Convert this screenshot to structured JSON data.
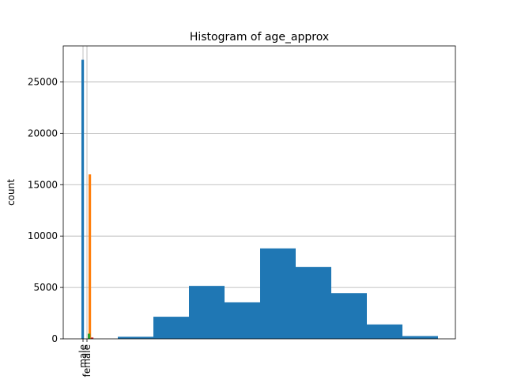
{
  "chart_data": {
    "type": "bar",
    "title": "Histogram of age_approx",
    "xlabel": "",
    "ylabel": "count",
    "ylim": [
      0,
      28500
    ],
    "yticks": [
      0,
      5000,
      10000,
      15000,
      20000,
      25000
    ],
    "grid": "y",
    "legend": "none",
    "categorical_bars": {
      "categories": [
        "male",
        "female"
      ],
      "series": [
        {
          "values": [
            27150,
            0
          ],
          "color": "#1f77b4"
        },
        {
          "values": [
            0,
            16000
          ],
          "color": "#ff7f0e"
        },
        {
          "values": [
            500,
            0
          ],
          "color": "#2ca02c"
        },
        {
          "values": [
            130,
            0
          ],
          "color": "#d62728"
        }
      ]
    },
    "histogram": {
      "color": "#1f77b4",
      "bins": [
        {
          "x0": 0,
          "x1": 9,
          "count": 200
        },
        {
          "x0": 9,
          "x1": 18,
          "count": 2150
        },
        {
          "x0": 18,
          "x1": 27,
          "count": 5150
        },
        {
          "x0": 27,
          "x1": 36,
          "count": 3550
        },
        {
          "x0": 36,
          "x1": 45,
          "count": 8800
        },
        {
          "x0": 45,
          "x1": 54,
          "count": 7000
        },
        {
          "x0": 54,
          "x1": 63,
          "count": 4450
        },
        {
          "x0": 63,
          "x1": 72,
          "count": 1400
        },
        {
          "x0": 72,
          "x1": 81,
          "count": 270
        }
      ]
    }
  }
}
